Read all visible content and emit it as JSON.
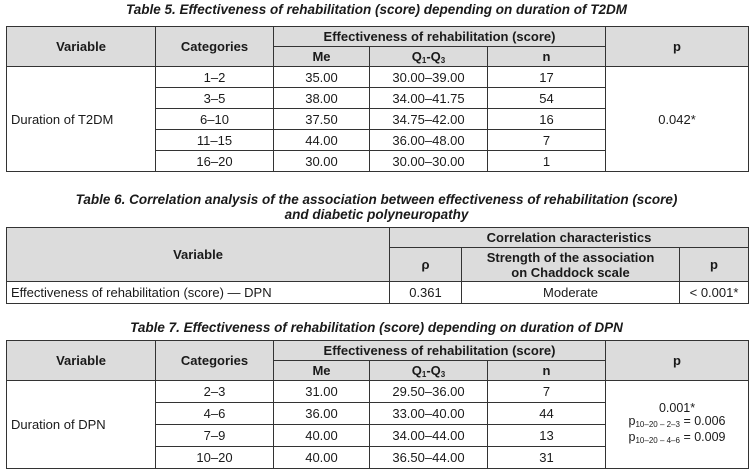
{
  "table5": {
    "caption": "Table 5. Effectiveness of rehabilitation (score) depending on duration of T2DM",
    "h_variable": "Variable",
    "h_categories": "Categories",
    "h_group": "Effectiveness of rehabilitation (score)",
    "h_me": "Me",
    "h_q_main": "Q",
    "h_q_sub1": "1",
    "h_q_dash": "-Q",
    "h_q_sub3": "3",
    "h_n": "n",
    "h_p": "p",
    "variable": "Duration of T2DM",
    "p_value": "0.042*",
    "rows": [
      {
        "cat": "1–2",
        "me": "35.00",
        "q": "30.00–39.00",
        "n": "17"
      },
      {
        "cat": "3–5",
        "me": "38.00",
        "q": "34.00–41.75",
        "n": "54"
      },
      {
        "cat": "6–10",
        "me": "37.50",
        "q": "34.75–42.00",
        "n": "16"
      },
      {
        "cat": "11–15",
        "me": "44.00",
        "q": "36.00–48.00",
        "n": "7"
      },
      {
        "cat": "16–20",
        "me": "30.00",
        "q": "30.00–30.00",
        "n": "1"
      }
    ]
  },
  "table6": {
    "caption_line1": "Table 6. Correlation analysis of the association between effectiveness of rehabilitation (score)",
    "caption_line2": "and diabetic polyneuropathy",
    "h_variable": "Variable",
    "h_group": "Correlation characteristics",
    "h_rho": "ρ",
    "h_strength_1": "Strength of the association",
    "h_strength_2": "on Chaddock scale",
    "h_p": "p",
    "row": {
      "variable": "Effectiveness of rehabilitation (score) — DPN",
      "rho": "0.361",
      "strength": "Moderate",
      "p": "< 0.001*"
    }
  },
  "table7": {
    "caption": "Table 7. Effectiveness of rehabilitation (score) depending on duration of DPN",
    "h_variable": "Variable",
    "h_categories": "Categories",
    "h_group": "Effectiveness of rehabilitation (score)",
    "h_me": "Me",
    "h_q_main": "Q",
    "h_q_sub1": "1",
    "h_q_dash": "-Q",
    "h_q_sub3": "3",
    "h_n": "n",
    "h_p": "p",
    "variable": "Duration of DPN",
    "p_main": "0.001*",
    "p_line2_p": "p",
    "p_line2_sub": "10–20 – 2–3",
    "p_line2_val": " = 0.006",
    "p_line3_p": "p",
    "p_line3_sub": "10–20 – 4–6",
    "p_line3_val": " = 0.009",
    "rows": [
      {
        "cat": "2–3",
        "me": "31.00",
        "q": "29.50–36.00",
        "n": "7"
      },
      {
        "cat": "4–6",
        "me": "36.00",
        "q": "33.00–40.00",
        "n": "44"
      },
      {
        "cat": "7–9",
        "me": "40.00",
        "q": "34.00–44.00",
        "n": "13"
      },
      {
        "cat": "10–20",
        "me": "40.00",
        "q": "36.50–44.00",
        "n": "31"
      }
    ]
  }
}
